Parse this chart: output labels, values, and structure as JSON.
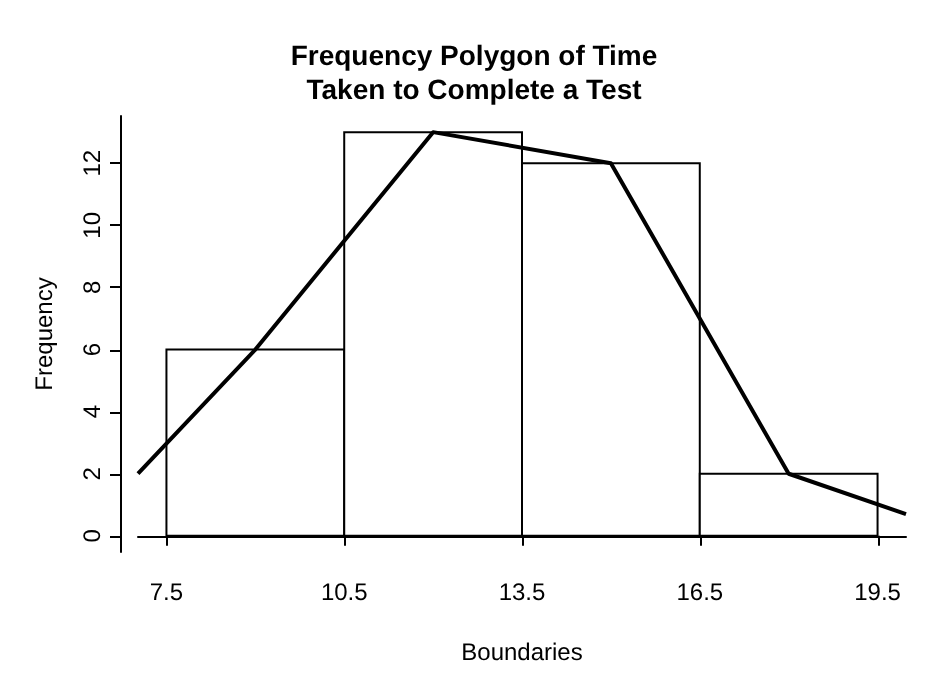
{
  "chart_data": {
    "type": "histogram",
    "title": "Frequency Polygon of Time\nTaken to Complete a Test",
    "xlabel": "Boundaries",
    "ylabel": "Frequency",
    "bins": [
      7.5,
      10.5,
      13.5,
      16.5,
      19.5
    ],
    "values": [
      6,
      13,
      12,
      2
    ],
    "color": "#ffffff",
    "series": [
      {
        "type": "line",
        "color": "#000000",
        "x": [
          7.02,
          9,
          12,
          15,
          18,
          19.98
        ],
        "values": [
          2,
          6,
          13,
          12,
          2,
          0.7
        ]
      }
    ],
    "xlim": [
      7.02,
      19.98
    ],
    "xticks": [
      7.5,
      10.5,
      13.5,
      16.5,
      19.5
    ],
    "ylim": [
      -0.52,
      13.52
    ],
    "yticks": [
      0,
      2,
      4,
      6,
      8,
      10,
      12
    ],
    "grid": false,
    "marker": "none"
  }
}
